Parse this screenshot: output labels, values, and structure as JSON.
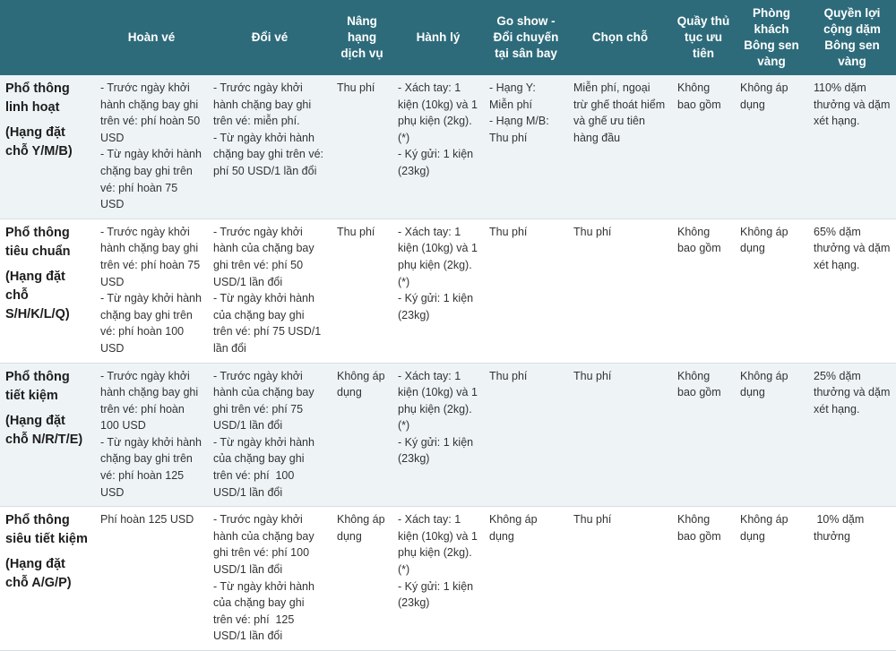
{
  "headers": [
    "",
    "Hoàn vé",
    "Đổi vé",
    "Nâng hạng dịch vụ",
    "Hành lý",
    "Go show - Đổi chuyến tại sân bay",
    "Chọn chỗ",
    "Quầy thủ tục ưu tiên",
    "Phòng khách Bông sen vàng",
    "Quyền lợi cộng dặm Bông sen vàng"
  ],
  "rows": [
    {
      "fare_name": "Phổ thông linh hoạt",
      "fare_code": "(Hạng đặt chỗ Y/M/B)",
      "refund": "- Trước ngày khởi hành chặng bay ghi trên vé: phí hoàn 50 USD\n- Từ ngày khởi hành chặng bay ghi trên vé: phí hoàn 75 USD",
      "change": "- Trước ngày khởi hành chặng bay ghi trên vé: miễn phí.\n- Từ ngày khởi hành chặng bay ghi trên vé: phí 50 USD/1 lần đổi",
      "upgrade": "Thu phí",
      "baggage": "- Xách tay: 1 kiện (10kg) và 1 phụ kiện (2kg). (*)\n- Ký gửi: 1 kiện (23kg)",
      "goshow": "- Hạng Y: Miễn phí\n- Hạng M/B: Thu phí",
      "seat": "Miễn phí, ngoại trừ ghế thoát hiểm và ghế ưu tiên hàng đầu",
      "checkin": "Không bao gồm",
      "lounge": "Không áp dụng",
      "miles": "110% dặm thưởng và dặm xét hạng."
    },
    {
      "fare_name": "Phổ thông tiêu chuẩn",
      "fare_code": "(Hạng đặt chỗ S/H/K/L/Q)",
      "refund": "- Trước ngày khởi hành chặng bay ghi trên vé: phí hoàn 75 USD\n- Từ ngày khởi hành chặng bay ghi trên vé: phí hoàn 100 USD",
      "change": "- Trước ngày khởi hành của chặng bay ghi trên vé: phí 50 USD/1 lần đổi\n- Từ ngày khởi hành của chặng bay ghi trên vé: phí 75 USD/1 lần đổi",
      "upgrade": "Thu phí",
      "baggage": "- Xách tay: 1 kiện (10kg) và 1 phụ kiện (2kg). (*)\n- Ký gửi: 1 kiện (23kg)",
      "goshow": "Thu phí",
      "seat": "Thu phí",
      "checkin": "Không bao gồm",
      "lounge": "Không áp dụng",
      "miles": "65% dặm thưởng và dặm xét hạng."
    },
    {
      "fare_name": "Phổ thông tiết kiệm",
      "fare_code": "(Hạng đặt chỗ N/R/T/E)",
      "refund": "- Trước ngày khởi hành chặng bay ghi trên vé: phí hoàn 100 USD\n- Từ ngày khởi hành chặng bay ghi trên vé: phí hoàn 125 USD",
      "change": "- Trước ngày khởi hành của chặng bay ghi trên vé: phí 75 USD/1 lần đổi\n- Từ ngày khởi hành của chặng bay ghi trên vé: phí  100 USD/1 lần đổi",
      "upgrade": "Không áp dụng",
      "baggage": "- Xách tay: 1 kiện (10kg) và 1 phụ kiện (2kg). (*)\n- Ký gửi: 1 kiện (23kg)",
      "goshow": "Thu phí",
      "seat": "Thu phí",
      "checkin": "Không bao gồm",
      "lounge": "Không áp dụng",
      "miles": "25% dặm thưởng và dặm xét hạng."
    },
    {
      "fare_name": "Phổ thông siêu tiết kiệm",
      "fare_code": "(Hạng đặt chỗ A/G/P)",
      "refund": "Phí hoàn 125 USD",
      "change": "- Trước ngày khởi hành của chặng bay ghi trên vé: phí 100 USD/1 lần đổi\n- Từ ngày khởi hành của chặng bay ghi trên vé: phí  125 USD/1 lần đổi",
      "upgrade": "Không áp dụng",
      "baggage": "- Xách tay: 1 kiện (10kg) và 1 phụ kiện (2kg). (*)\n- Ký gửi: 1 kiện (23kg)",
      "goshow": "Không áp dụng",
      "seat": "Thu phí",
      "checkin": "Không bao gồm",
      "lounge": "Không áp dụng",
      "miles": " 10% dặm thưởng"
    }
  ]
}
